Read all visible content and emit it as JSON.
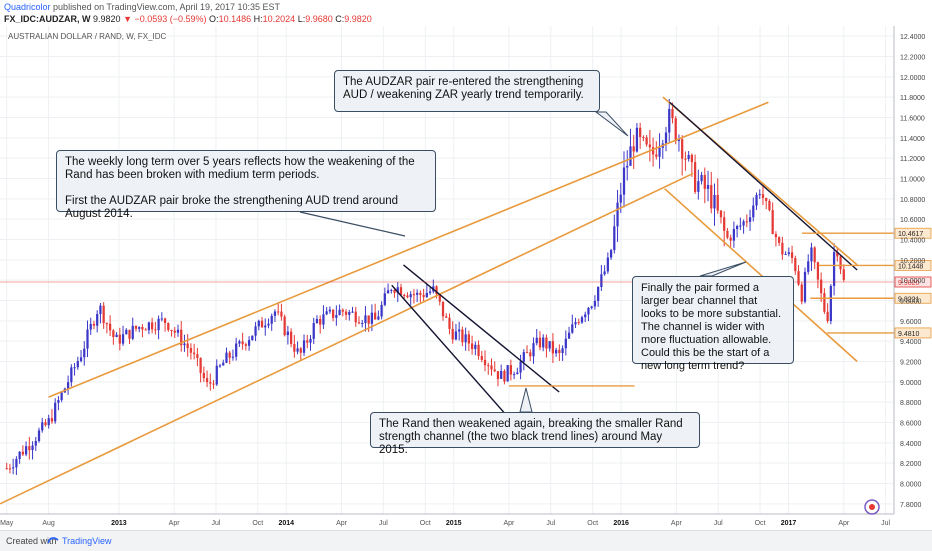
{
  "header": {
    "author": "Quadricolor",
    "published": "published on TradingView.com, April 19, 2017 10:35 EST",
    "symbol": "FX_IDC:AUDZAR, W",
    "last": "9.9820",
    "change": "▼ −0.0593 (−0.59%)",
    "open_label": "O:",
    "open": "10.1486",
    "high_label": "H:",
    "high": "10.2024",
    "low_label": "L:",
    "low": "9.9680",
    "close_label": "C:",
    "close": "9.9820"
  },
  "chart_title": "AUSTRALIAN DOLLAR / RAND, W, FX_IDC",
  "footer": {
    "created": "Created with",
    "brand": "TradingView"
  },
  "annotations": {
    "top_note": "The AUDZAR pair re-entered the strengthening AUD / weakening ZAR yearly trend temporarily.",
    "left_note_1": "The weekly long term over 5 years reflects how the weakening of the Rand has been broken with medium term periods.",
    "left_note_2": "First the AUDZAR pair broke the strengthening AUD trend around August 2014.",
    "right_note": "Finally the pair formed a larger bear channel that looks to be more substantial.  The channel is wider with more fluctuation allowable. Could this be the start of a new long term trend?",
    "bottom_note": "The Rand then weakened again, breaking the smaller Rand strength channel (the two black trend lines) around May 2015."
  },
  "colors": {
    "up": "#3b37c8",
    "down": "#e53935",
    "trend_orange": "#e89a3c",
    "trend_black": "#141432",
    "last_price": "#e53935"
  },
  "chart_data": {
    "type": "candlestick",
    "title": "AUSTRALIAN DOLLAR / RAND, W, FX_IDC",
    "x_start": "2012-05",
    "x_end": "2017-04",
    "ylim": [
      7.7,
      12.5
    ],
    "y_ticks": [
      "12.4000",
      "12.2000",
      "12.0000",
      "11.8000",
      "11.6000",
      "11.4000",
      "11.2000",
      "11.0000",
      "10.8000",
      "10.6000",
      "10.4000",
      "10.2000",
      "10.0000",
      "9.8000",
      "9.6000",
      "9.4000",
      "9.2000",
      "9.0000",
      "8.8000",
      "8.6000",
      "8.4000",
      "8.2000",
      "8.0000",
      "7.8000"
    ],
    "x_ticks": [
      {
        "label": "May",
        "t": 0.0
      },
      {
        "label": "Aug",
        "t": 0.25
      },
      {
        "label": "2013",
        "t": 0.67
      },
      {
        "label": "Apr",
        "t": 1.0
      },
      {
        "label": "Jul",
        "t": 1.25
      },
      {
        "label": "Oct",
        "t": 1.5
      },
      {
        "label": "2014",
        "t": 1.67
      },
      {
        "label": "Apr",
        "t": 2.0
      },
      {
        "label": "Jul",
        "t": 2.25
      },
      {
        "label": "Oct",
        "t": 2.5
      },
      {
        "label": "2015",
        "t": 2.67
      },
      {
        "label": "Apr",
        "t": 3.0
      },
      {
        "label": "Jul",
        "t": 3.25
      },
      {
        "label": "Oct",
        "t": 3.5
      },
      {
        "label": "2016",
        "t": 3.67
      },
      {
        "label": "Apr",
        "t": 4.0
      },
      {
        "label": "Jul",
        "t": 4.25
      },
      {
        "label": "Oct",
        "t": 4.5
      },
      {
        "label": "2017",
        "t": 4.67
      },
      {
        "label": "Apr",
        "t": 5.0
      },
      {
        "label": "Jul",
        "t": 5.25
      }
    ],
    "t_range": [
      -0.04,
      5.3
    ],
    "anchors": [
      [
        0.0,
        8.15
      ],
      [
        0.25,
        8.6
      ],
      [
        0.45,
        9.3
      ],
      [
        0.55,
        9.75
      ],
      [
        0.65,
        9.4
      ],
      [
        0.8,
        9.55
      ],
      [
        0.95,
        9.6
      ],
      [
        1.1,
        9.3
      ],
      [
        1.2,
        8.95
      ],
      [
        1.3,
        9.2
      ],
      [
        1.45,
        9.45
      ],
      [
        1.6,
        9.7
      ],
      [
        1.75,
        9.25
      ],
      [
        1.85,
        9.6
      ],
      [
        2.0,
        9.7
      ],
      [
        2.2,
        9.6
      ],
      [
        2.3,
        9.95
      ],
      [
        2.45,
        9.85
      ],
      [
        2.55,
        9.9
      ],
      [
        2.65,
        9.5
      ],
      [
        2.8,
        9.35
      ],
      [
        2.95,
        9.05
      ],
      [
        3.05,
        9.15
      ],
      [
        3.15,
        9.35
      ],
      [
        3.2,
        9.4
      ],
      [
        3.3,
        9.25
      ],
      [
        3.4,
        9.6
      ],
      [
        3.5,
        9.8
      ],
      [
        3.6,
        10.2
      ],
      [
        3.68,
        11.0
      ],
      [
        3.75,
        11.4
      ],
      [
        3.85,
        11.2
      ],
      [
        3.95,
        11.6
      ],
      [
        4.02,
        11.4
      ],
      [
        4.1,
        11.0
      ],
      [
        4.2,
        10.85
      ],
      [
        4.3,
        10.4
      ],
      [
        4.42,
        10.6
      ],
      [
        4.5,
        10.9
      ],
      [
        4.62,
        10.3
      ],
      [
        4.7,
        10.2
      ],
      [
        4.75,
        9.85
      ],
      [
        4.8,
        10.3
      ],
      [
        4.9,
        9.6
      ],
      [
        4.95,
        10.4
      ],
      [
        5.0,
        9.98
      ]
    ],
    "channels": [
      {
        "name": "orange-upper",
        "p1": [
          0.25,
          8.85
        ],
        "p2": [
          4.55,
          11.75
        ]
      },
      {
        "name": "orange-lower",
        "p1": [
          -0.04,
          7.8
        ],
        "p2": [
          4.1,
          11.05
        ]
      },
      {
        "name": "bear-upper",
        "p1": [
          3.92,
          11.8
        ],
        "p2": [
          5.08,
          10.15
        ]
      },
      {
        "name": "bear-lower",
        "p1": [
          3.93,
          10.9
        ],
        "p2": [
          5.08,
          9.2
        ]
      },
      {
        "name": "black-upper",
        "p1": [
          2.37,
          10.15
        ],
        "p2": [
          3.3,
          8.9
        ]
      },
      {
        "name": "black-lower",
        "p1": [
          2.3,
          9.95
        ],
        "p2": [
          3.05,
          8.55
        ]
      },
      {
        "name": "black-bear",
        "p1": [
          3.96,
          11.75
        ],
        "p2": [
          5.08,
          10.1
        ]
      }
    ],
    "levels": [
      {
        "label": "10.4617",
        "value": 10.4617,
        "t1": 4.75,
        "style": "orange"
      },
      {
        "label": "10.1448",
        "value": 10.1448,
        "t1": 4.85,
        "style": "orange"
      },
      {
        "label": "9.9820",
        "value": 9.982,
        "t1": -0.04,
        "style": "last"
      },
      {
        "label": "9.8221",
        "value": 9.8221,
        "t1": 4.8,
        "style": "orange"
      },
      {
        "label": "9.4810",
        "value": 9.481,
        "t1": 4.9,
        "style": "orange"
      },
      {
        "label": "",
        "value": 8.96,
        "t1": 3.0,
        "t2": 3.75,
        "style": "orange"
      }
    ]
  }
}
